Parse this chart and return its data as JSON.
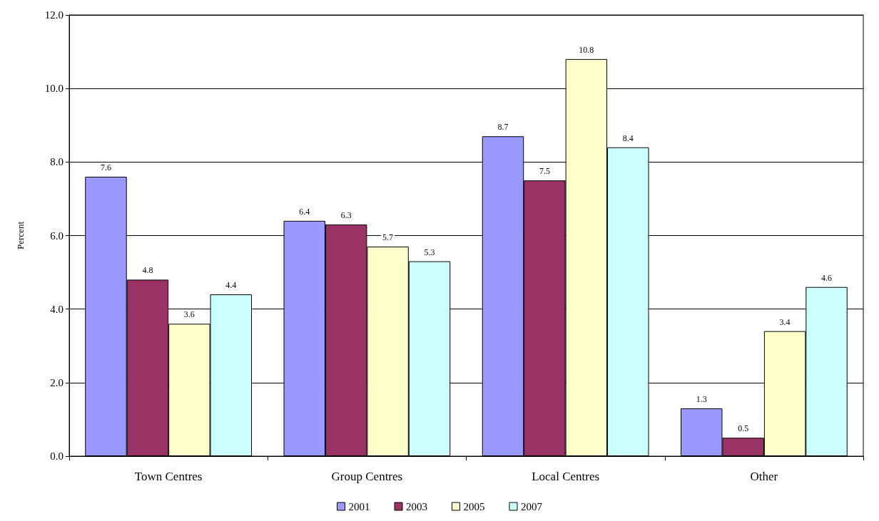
{
  "chart_data": {
    "type": "bar",
    "ylabel": "Percent",
    "categories": [
      "Town Centres",
      "Group Centres",
      "Local Centres",
      "Other"
    ],
    "series": [
      {
        "name": "2001",
        "color": "#9999ff",
        "values": [
          7.6,
          6.4,
          8.7,
          1.3
        ]
      },
      {
        "name": "2003",
        "color": "#993366",
        "values": [
          4.8,
          6.3,
          7.5,
          0.5
        ]
      },
      {
        "name": "2005",
        "color": "#ffffcc",
        "values": [
          3.6,
          5.7,
          10.8,
          3.4
        ]
      },
      {
        "name": "2007",
        "color": "#ccffff",
        "values": [
          4.4,
          5.3,
          8.4,
          4.6
        ]
      }
    ],
    "ylim": [
      0,
      12
    ],
    "yticks": [
      {
        "value": 0,
        "label": "0.0"
      },
      {
        "value": 2,
        "label": "2.0"
      },
      {
        "value": 4,
        "label": "4.0"
      },
      {
        "value": 6,
        "label": "6.0"
      },
      {
        "value": 8,
        "label": "8.0"
      },
      {
        "value": 10,
        "label": "10.0"
      },
      {
        "value": 12,
        "label": "12.0"
      }
    ],
    "grid": "y",
    "legend": "bottom",
    "data_labels": true
  }
}
